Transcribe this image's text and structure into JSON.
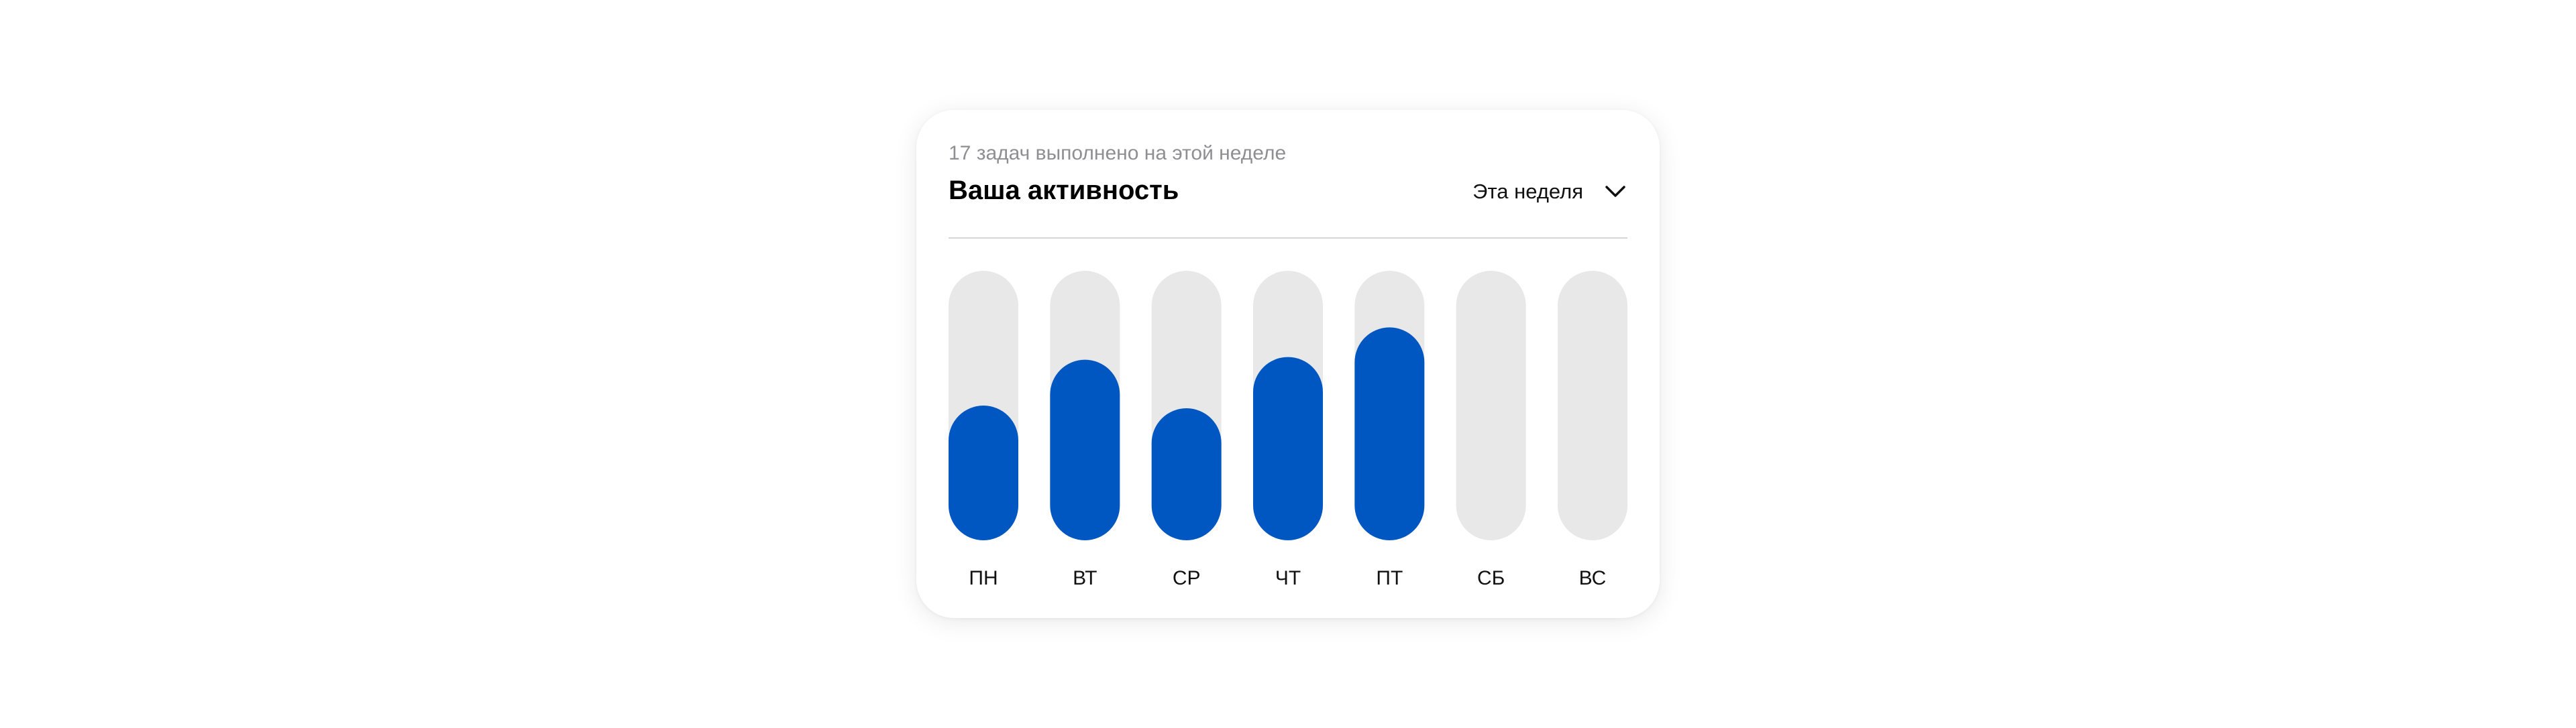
{
  "header": {
    "subtitle": "17 задач выполнено на этой неделе",
    "title": "Ваша активность",
    "period": "Эта неделя"
  },
  "icons": {
    "dropdown": "chevron-down-icon"
  },
  "colors": {
    "bar_fill": "#0057c2",
    "bar_track": "#e8e8e8"
  },
  "chart_data": {
    "type": "bar",
    "categories": [
      "ПН",
      "ВТ",
      "СР",
      "ЧТ",
      "ПТ",
      "СБ",
      "ВС"
    ],
    "values": [
      0.5,
      0.67,
      0.49,
      0.68,
      0.79,
      0,
      0
    ],
    "ylim": [
      0,
      1
    ],
    "grid": false,
    "legend": "none"
  }
}
